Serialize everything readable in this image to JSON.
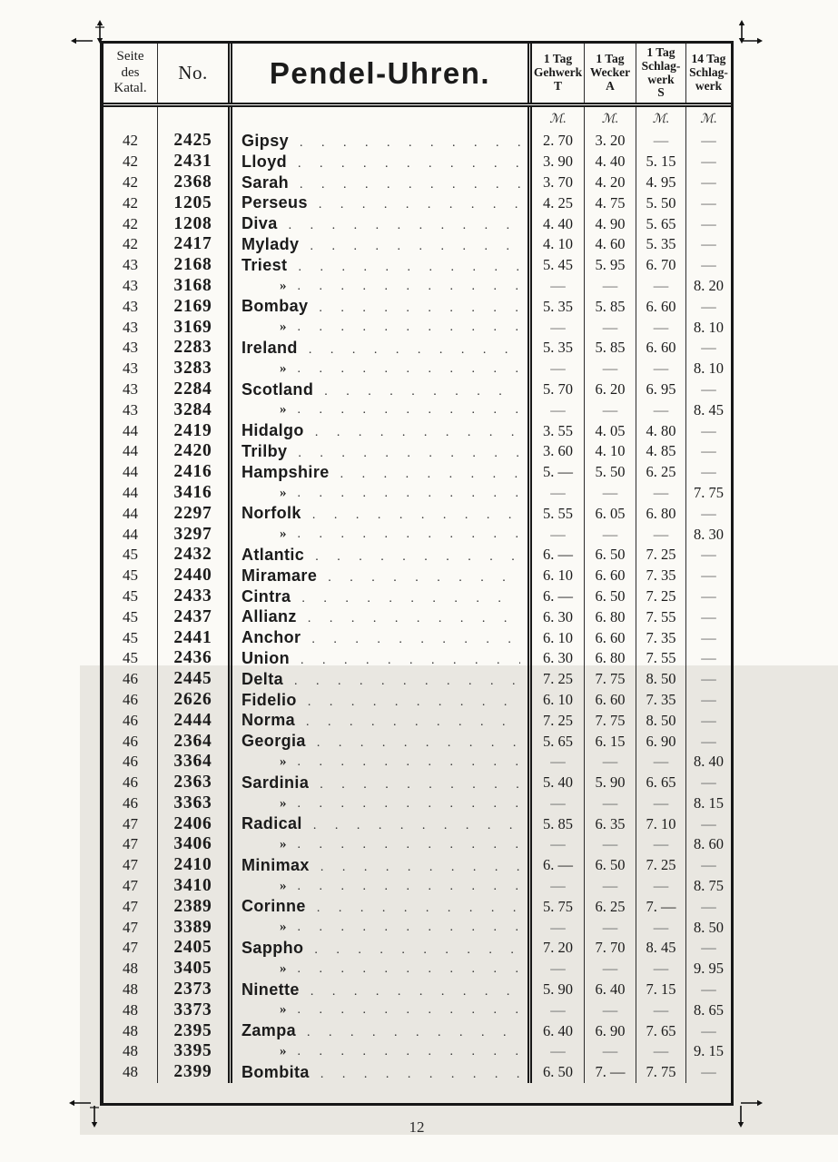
{
  "page_number": "12",
  "currency_symbol": "ℳ.",
  "table": {
    "headers": {
      "col_page": "Seite\ndes\nKatal.",
      "col_no": "No.",
      "col_name": "Pendel-Uhren.",
      "col_gehwerk": "1 Tag\nGehwerk\nT",
      "col_wecker": "1 Tag\nWecker\nA",
      "col_schlagwerk": "1 Tag\nSchlag-\nwerk\nS",
      "col_14tag": "14 Tag\nSchlag-\nwerk"
    },
    "rows": [
      {
        "page": "42",
        "no": "2425",
        "name": "Gipsy",
        "gehwerk": "2. 70",
        "wecker": "3. 20",
        "schlagwerk": "—",
        "tag14": "—"
      },
      {
        "page": "42",
        "no": "2431",
        "name": "Lloyd",
        "gehwerk": "3. 90",
        "wecker": "4. 40",
        "schlagwerk": "5. 15",
        "tag14": "—"
      },
      {
        "page": "42",
        "no": "2368",
        "name": "Sarah",
        "gehwerk": "3. 70",
        "wecker": "4. 20",
        "schlagwerk": "4. 95",
        "tag14": "—"
      },
      {
        "page": "42",
        "no": "1205",
        "name": "Perseus",
        "gehwerk": "4. 25",
        "wecker": "4. 75",
        "schlagwerk": "5. 50",
        "tag14": "—"
      },
      {
        "page": "42",
        "no": "1208",
        "name": "Diva",
        "gehwerk": "4. 40",
        "wecker": "4. 90",
        "schlagwerk": "5. 65",
        "tag14": "—"
      },
      {
        "page": "42",
        "no": "2417",
        "name": "Mylady",
        "gehwerk": "4. 10",
        "wecker": "4. 60",
        "schlagwerk": "5. 35",
        "tag14": "—"
      },
      {
        "page": "43",
        "no": "2168",
        "name": "Triest",
        "gehwerk": "5. 45",
        "wecker": "5. 95",
        "schlagwerk": "6. 70",
        "tag14": "—"
      },
      {
        "page": "43",
        "no": "3168",
        "name": "»",
        "gehwerk": "—",
        "wecker": "—",
        "schlagwerk": "—",
        "tag14": "8. 20"
      },
      {
        "page": "43",
        "no": "2169",
        "name": "Bombay",
        "gehwerk": "5. 35",
        "wecker": "5. 85",
        "schlagwerk": "6. 60",
        "tag14": "—"
      },
      {
        "page": "43",
        "no": "3169",
        "name": "»",
        "gehwerk": "—",
        "wecker": "—",
        "schlagwerk": "—",
        "tag14": "8. 10"
      },
      {
        "page": "43",
        "no": "2283",
        "name": "Ireland",
        "gehwerk": "5. 35",
        "wecker": "5. 85",
        "schlagwerk": "6. 60",
        "tag14": "—"
      },
      {
        "page": "43",
        "no": "3283",
        "name": "»",
        "gehwerk": "—",
        "wecker": "—",
        "schlagwerk": "—",
        "tag14": "8. 10"
      },
      {
        "page": "43",
        "no": "2284",
        "name": "Scotland",
        "gehwerk": "5. 70",
        "wecker": "6. 20",
        "schlagwerk": "6. 95",
        "tag14": "—"
      },
      {
        "page": "43",
        "no": "3284",
        "name": "»",
        "gehwerk": "—",
        "wecker": "—",
        "schlagwerk": "—",
        "tag14": "8. 45"
      },
      {
        "page": "44",
        "no": "2419",
        "name": "Hidalgo",
        "gehwerk": "3. 55",
        "wecker": "4. 05",
        "schlagwerk": "4. 80",
        "tag14": "—"
      },
      {
        "page": "44",
        "no": "2420",
        "name": "Trilby",
        "gehwerk": "3. 60",
        "wecker": "4. 10",
        "schlagwerk": "4. 85",
        "tag14": "—"
      },
      {
        "page": "44",
        "no": "2416",
        "name": "Hampshire",
        "gehwerk": "5. —",
        "wecker": "5. 50",
        "schlagwerk": "6. 25",
        "tag14": "—"
      },
      {
        "page": "44",
        "no": "3416",
        "name": "»",
        "gehwerk": "—",
        "wecker": "—",
        "schlagwerk": "—",
        "tag14": "7. 75"
      },
      {
        "page": "44",
        "no": "2297",
        "name": "Norfolk",
        "gehwerk": "5. 55",
        "wecker": "6. 05",
        "schlagwerk": "6. 80",
        "tag14": "—"
      },
      {
        "page": "44",
        "no": "3297",
        "name": "»",
        "gehwerk": "—",
        "wecker": "—",
        "schlagwerk": "—",
        "tag14": "8. 30"
      },
      {
        "page": "45",
        "no": "2432",
        "name": "Atlantic",
        "gehwerk": "6. —",
        "wecker": "6. 50",
        "schlagwerk": "7. 25",
        "tag14": "—"
      },
      {
        "page": "45",
        "no": "2440",
        "name": "Miramare",
        "gehwerk": "6. 10",
        "wecker": "6. 60",
        "schlagwerk": "7. 35",
        "tag14": "—"
      },
      {
        "page": "45",
        "no": "2433",
        "name": "Cintra",
        "gehwerk": "6. —",
        "wecker": "6. 50",
        "schlagwerk": "7. 25",
        "tag14": "—"
      },
      {
        "page": "45",
        "no": "2437",
        "name": "Allianz",
        "gehwerk": "6. 30",
        "wecker": "6. 80",
        "schlagwerk": "7. 55",
        "tag14": "—"
      },
      {
        "page": "45",
        "no": "2441",
        "name": "Anchor",
        "gehwerk": "6. 10",
        "wecker": "6. 60",
        "schlagwerk": "7. 35",
        "tag14": "—"
      },
      {
        "page": "45",
        "no": "2436",
        "name": "Union",
        "gehwerk": "6. 30",
        "wecker": "6. 80",
        "schlagwerk": "7. 55",
        "tag14": "—"
      },
      {
        "page": "46",
        "no": "2445",
        "name": "Delta",
        "gehwerk": "7. 25",
        "wecker": "7. 75",
        "schlagwerk": "8. 50",
        "tag14": "—"
      },
      {
        "page": "46",
        "no": "2626",
        "name": "Fidelio",
        "gehwerk": "6. 10",
        "wecker": "6. 60",
        "schlagwerk": "7. 35",
        "tag14": "—"
      },
      {
        "page": "46",
        "no": "2444",
        "name": "Norma",
        "gehwerk": "7. 25",
        "wecker": "7. 75",
        "schlagwerk": "8. 50",
        "tag14": "—"
      },
      {
        "page": "46",
        "no": "2364",
        "name": "Georgia",
        "gehwerk": "5. 65",
        "wecker": "6. 15",
        "schlagwerk": "6. 90",
        "tag14": "—"
      },
      {
        "page": "46",
        "no": "3364",
        "name": "»",
        "gehwerk": "—",
        "wecker": "—",
        "schlagwerk": "—",
        "tag14": "8. 40"
      },
      {
        "page": "46",
        "no": "2363",
        "name": "Sardinia",
        "gehwerk": "5. 40",
        "wecker": "5. 90",
        "schlagwerk": "6. 65",
        "tag14": "—"
      },
      {
        "page": "46",
        "no": "3363",
        "name": "»",
        "gehwerk": "—",
        "wecker": "—",
        "schlagwerk": "—",
        "tag14": "8. 15"
      },
      {
        "page": "47",
        "no": "2406",
        "name": "Radical",
        "gehwerk": "5. 85",
        "wecker": "6. 35",
        "schlagwerk": "7. 10",
        "tag14": "—"
      },
      {
        "page": "47",
        "no": "3406",
        "name": "»",
        "gehwerk": "—",
        "wecker": "—",
        "schlagwerk": "—",
        "tag14": "8. 60"
      },
      {
        "page": "47",
        "no": "2410",
        "name": "Minimax",
        "gehwerk": "6. —",
        "wecker": "6. 50",
        "schlagwerk": "7. 25",
        "tag14": "—"
      },
      {
        "page": "47",
        "no": "3410",
        "name": "»",
        "gehwerk": "—",
        "wecker": "—",
        "schlagwerk": "—",
        "tag14": "8. 75"
      },
      {
        "page": "47",
        "no": "2389",
        "name": "Corinne",
        "gehwerk": "5. 75",
        "wecker": "6. 25",
        "schlagwerk": "7. —",
        "tag14": "—"
      },
      {
        "page": "47",
        "no": "3389",
        "name": "»",
        "gehwerk": "—",
        "wecker": "—",
        "schlagwerk": "—",
        "tag14": "8. 50"
      },
      {
        "page": "47",
        "no": "2405",
        "name": "Sappho",
        "gehwerk": "7. 20",
        "wecker": "7. 70",
        "schlagwerk": "8. 45",
        "tag14": "—"
      },
      {
        "page": "48",
        "no": "3405",
        "name": "»",
        "gehwerk": "—",
        "wecker": "—",
        "schlagwerk": "—",
        "tag14": "9. 95"
      },
      {
        "page": "48",
        "no": "2373",
        "name": "Ninette",
        "gehwerk": "5. 90",
        "wecker": "6. 40",
        "schlagwerk": "7. 15",
        "tag14": "—"
      },
      {
        "page": "48",
        "no": "3373",
        "name": "»",
        "gehwerk": "—",
        "wecker": "—",
        "schlagwerk": "—",
        "tag14": "8. 65"
      },
      {
        "page": "48",
        "no": "2395",
        "name": "Zampa",
        "gehwerk": "6. 40",
        "wecker": "6. 90",
        "schlagwerk": "7. 65",
        "tag14": "—"
      },
      {
        "page": "48",
        "no": "3395",
        "name": "»",
        "gehwerk": "—",
        "wecker": "—",
        "schlagwerk": "—",
        "tag14": "9. 15"
      },
      {
        "page": "48",
        "no": "2399",
        "name": "Bombita",
        "gehwerk": "6. 50",
        "wecker": "7. —",
        "schlagwerk": "7. 75",
        "tag14": "—"
      }
    ]
  }
}
